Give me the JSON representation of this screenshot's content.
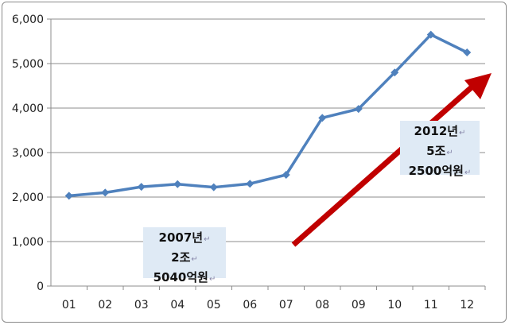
{
  "chart_data": {
    "type": "line",
    "categories": [
      "01",
      "02",
      "03",
      "04",
      "05",
      "06",
      "07",
      "08",
      "09",
      "10",
      "11",
      "12"
    ],
    "series": [
      {
        "values": [
          2030,
          2100,
          2230,
          2290,
          2220,
          2300,
          2500,
          3780,
          3980,
          4800,
          5650,
          5250
        ],
        "color": "#4f81bd"
      }
    ],
    "ylim": [
      0,
      6000
    ],
    "yticks": [
      "0",
      "1,000",
      "2,000",
      "3,000",
      "4,000",
      "5,000",
      "6,000"
    ],
    "grid": true,
    "annotations": [
      {
        "lines": [
          "2007년",
          "2조",
          "5040억원"
        ]
      },
      {
        "lines": [
          "2012년",
          "5조",
          "2500억원"
        ]
      }
    ],
    "arrow_color": "#c00000"
  }
}
